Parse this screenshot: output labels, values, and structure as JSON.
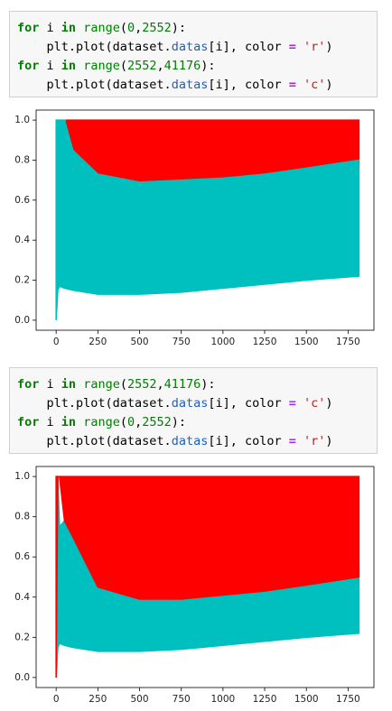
{
  "cells": [
    {
      "lines": [
        {
          "tokens": [
            {
              "t": "for",
              "k": "kw"
            },
            {
              "t": " i ",
              "k": "p"
            },
            {
              "t": "in",
              "k": "kw"
            },
            {
              "t": " ",
              "k": "p"
            },
            {
              "t": "range",
              "k": "bi"
            },
            {
              "t": "(",
              "k": "p"
            },
            {
              "t": "0",
              "k": "num"
            },
            {
              "t": ",",
              "k": "p"
            },
            {
              "t": "2552",
              "k": "num"
            },
            {
              "t": "):",
              "k": "p"
            }
          ]
        },
        {
          "tokens": [
            {
              "t": "    plt.plot(dataset.",
              "k": "p"
            },
            {
              "t": "datas",
              "k": "attr"
            },
            {
              "t": "[i], color ",
              "k": "p"
            },
            {
              "t": "=",
              "k": "op"
            },
            {
              "t": " ",
              "k": "p"
            },
            {
              "t": "'r'",
              "k": "str"
            },
            {
              "t": ")",
              "k": "p"
            }
          ]
        },
        {
          "tokens": [
            {
              "t": "for",
              "k": "kw"
            },
            {
              "t": " i ",
              "k": "p"
            },
            {
              "t": "in",
              "k": "kw"
            },
            {
              "t": " ",
              "k": "p"
            },
            {
              "t": "range",
              "k": "bi"
            },
            {
              "t": "(",
              "k": "p"
            },
            {
              "t": "2552",
              "k": "num"
            },
            {
              "t": ",",
              "k": "p"
            },
            {
              "t": "41176",
              "k": "num"
            },
            {
              "t": "):",
              "k": "p"
            }
          ]
        },
        {
          "tokens": [
            {
              "t": "    plt.plot(dataset.",
              "k": "p"
            },
            {
              "t": "datas",
              "k": "attr"
            },
            {
              "t": "[i], color ",
              "k": "p"
            },
            {
              "t": "=",
              "k": "op"
            },
            {
              "t": " ",
              "k": "p"
            },
            {
              "t": "'c'",
              "k": "str"
            },
            {
              "t": ")",
              "k": "p"
            }
          ]
        }
      ]
    },
    {
      "chart": {
        "type": "area",
        "xlim": [
          -120,
          1905
        ],
        "ylim": [
          -0.05,
          1.05
        ],
        "xticks": [
          0,
          250,
          500,
          750,
          1000,
          1250,
          1500,
          1750
        ],
        "yticks": [
          {
            "value": 0,
            "label": "0.0"
          },
          0.2,
          0.4,
          0.6,
          0.8,
          {
            "value": 1,
            "label": "1.0"
          }
        ],
        "series": [
          {
            "color": "#ff0000",
            "x": [
              60,
              100,
              250,
              500,
              1000,
              1500,
              1815
            ],
            "upper": [
              1,
              1,
              1,
              1,
              1,
              1,
              1
            ],
            "lower": [
              0.9,
              0.8,
              0.7,
              0.66,
              0.68,
              0.72,
              0.76
            ]
          },
          {
            "color": "#00bfbf",
            "x": [
              0,
              10,
              20,
              50,
              100,
              250,
              500,
              750,
              1000,
              1250,
              1500,
              1815
            ],
            "upper": [
              1,
              1,
              1,
              1,
              0.85,
              0.73,
              0.69,
              0.7,
              0.71,
              0.73,
              0.76,
              0.8
            ],
            "lower": [
              0,
              0.15,
              0.17,
              0.16,
              0.15,
              0.13,
              0.13,
              0.14,
              0.16,
              0.18,
              0.2,
              0.22
            ]
          }
        ]
      }
    },
    {
      "lines": [
        {
          "tokens": [
            {
              "t": "for",
              "k": "kw"
            },
            {
              "t": " i ",
              "k": "p"
            },
            {
              "t": "in",
              "k": "kw"
            },
            {
              "t": " ",
              "k": "p"
            },
            {
              "t": "range",
              "k": "bi"
            },
            {
              "t": "(",
              "k": "p"
            },
            {
              "t": "2552",
              "k": "num"
            },
            {
              "t": ",",
              "k": "p"
            },
            {
              "t": "41176",
              "k": "num"
            },
            {
              "t": "):",
              "k": "p"
            }
          ]
        },
        {
          "tokens": [
            {
              "t": "    plt.plot(dataset.",
              "k": "p"
            },
            {
              "t": "datas",
              "k": "attr"
            },
            {
              "t": "[i], color ",
              "k": "p"
            },
            {
              "t": "=",
              "k": "op"
            },
            {
              "t": " ",
              "k": "p"
            },
            {
              "t": "'c'",
              "k": "str"
            },
            {
              "t": ")",
              "k": "p"
            }
          ]
        },
        {
          "tokens": [
            {
              "t": "for",
              "k": "kw"
            },
            {
              "t": " i ",
              "k": "p"
            },
            {
              "t": "in",
              "k": "kw"
            },
            {
              "t": " ",
              "k": "p"
            },
            {
              "t": "range",
              "k": "bi"
            },
            {
              "t": "(",
              "k": "p"
            },
            {
              "t": "0",
              "k": "num"
            },
            {
              "t": ",",
              "k": "p"
            },
            {
              "t": "2552",
              "k": "num"
            },
            {
              "t": "):",
              "k": "p"
            }
          ]
        },
        {
          "tokens": [
            {
              "t": "    plt.plot(dataset.",
              "k": "p"
            },
            {
              "t": "datas",
              "k": "attr"
            },
            {
              "t": "[i], color ",
              "k": "p"
            },
            {
              "t": "=",
              "k": "op"
            },
            {
              "t": " ",
              "k": "p"
            },
            {
              "t": "'r'",
              "k": "str"
            },
            {
              "t": ")",
              "k": "p"
            }
          ]
        }
      ]
    },
    {
      "chart": {
        "type": "area",
        "xlim": [
          -120,
          1905
        ],
        "ylim": [
          -0.05,
          1.05
        ],
        "xticks": [
          0,
          250,
          500,
          750,
          1000,
          1250,
          1500,
          1750
        ],
        "yticks": [
          {
            "value": 0,
            "label": "0.0"
          },
          0.2,
          0.4,
          0.6,
          0.8,
          {
            "value": 1,
            "label": "1.0"
          }
        ],
        "series": [
          {
            "color": "#00bfbf",
            "x": [
              0,
              10,
              20,
              50,
              100,
              250,
              500,
              750,
              1000,
              1250,
              1500,
              1815
            ],
            "upper": [
              1,
              1,
              0.75,
              0.78,
              0.72,
              0.55,
              0.45,
              0.42,
              0.44,
              0.46,
              0.5,
              0.55
            ],
            "lower": [
              0,
              0.15,
              0.17,
              0.16,
              0.15,
              0.13,
              0.13,
              0.14,
              0.16,
              0.18,
              0.2,
              0.22
            ]
          },
          {
            "color": "#ff0000",
            "x": [
              0,
              10,
              20,
              50,
              100,
              250,
              500,
              750,
              1000,
              1250,
              1500,
              1815
            ],
            "upper": [
              1,
              1,
              1,
              1,
              1,
              1,
              1,
              1,
              1,
              1,
              1,
              1
            ],
            "lower": [
              0,
              1,
              1,
              0.78,
              0.7,
              0.45,
              0.39,
              0.39,
              0.41,
              0.43,
              0.46,
              0.5
            ]
          }
        ]
      }
    }
  ]
}
